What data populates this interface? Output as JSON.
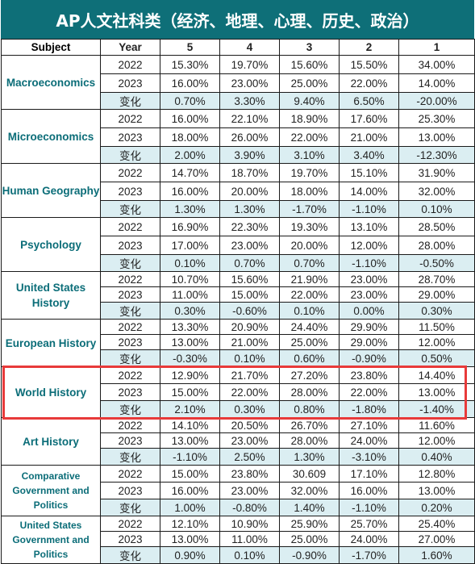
{
  "title": "AP人文社科类（经济、地理、心理、历史、政治）",
  "headers": [
    "Subject",
    "Year",
    "5",
    "4",
    "3",
    "2",
    "1"
  ],
  "subjects": [
    {
      "name": "Macroeconomics",
      "rows": [
        {
          "year": "2022",
          "values": [
            "15.30%",
            "19.70%",
            "15.60%",
            "15.50%",
            "34.00%"
          ]
        },
        {
          "year": "2023",
          "values": [
            "16.00%",
            "23.00%",
            "25.00%",
            "22.00%",
            "14.00%"
          ]
        },
        {
          "year": "变化",
          "values": [
            "0.70%",
            "3.30%",
            "9.40%",
            "6.50%",
            "-20.00%"
          ]
        }
      ]
    },
    {
      "name": "Microeconomics",
      "rows": [
        {
          "year": "2022",
          "values": [
            "16.00%",
            "22.10%",
            "18.90%",
            "17.60%",
            "25.30%"
          ]
        },
        {
          "year": "2023",
          "values": [
            "18.00%",
            "26.00%",
            "22.00%",
            "21.00%",
            "13.00%"
          ]
        },
        {
          "year": "变化",
          "values": [
            "2.00%",
            "3.90%",
            "3.10%",
            "3.40%",
            "-12.30%"
          ]
        }
      ]
    },
    {
      "name": "Human Geography",
      "rows": [
        {
          "year": "2022",
          "values": [
            "14.70%",
            "18.70%",
            "19.70%",
            "15.10%",
            "31.90%"
          ]
        },
        {
          "year": "2023",
          "values": [
            "16.00%",
            "20.00%",
            "18.00%",
            "14.00%",
            "32.00%"
          ]
        },
        {
          "year": "变化",
          "values": [
            "1.30%",
            "1.30%",
            "-1.70%",
            "-1.10%",
            "0.10%"
          ]
        }
      ]
    },
    {
      "name": "Psychology",
      "rows": [
        {
          "year": "2022",
          "values": [
            "16.90%",
            "22.30%",
            "19.30%",
            "13.10%",
            "28.50%"
          ]
        },
        {
          "year": "2023",
          "values": [
            "17.00%",
            "23.00%",
            "20.00%",
            "12.00%",
            "28.00%"
          ]
        },
        {
          "year": "变化",
          "values": [
            "0.10%",
            "0.70%",
            "0.70%",
            "-1.10%",
            "-0.50%"
          ]
        }
      ]
    },
    {
      "name": "United States History",
      "rows": [
        {
          "year": "2022",
          "values": [
            "10.70%",
            "15.60%",
            "21.90%",
            "23.00%",
            "28.70%"
          ]
        },
        {
          "year": "2023",
          "values": [
            "11.00%",
            "15.00%",
            "22.00%",
            "23.00%",
            "29.00%"
          ]
        },
        {
          "year": "变化",
          "values": [
            "0.30%",
            "-0.60%",
            "0.10%",
            "0.00%",
            "0.30%"
          ]
        }
      ]
    },
    {
      "name": "European History",
      "rows": [
        {
          "year": "2022",
          "values": [
            "13.30%",
            "20.90%",
            "24.40%",
            "29.90%",
            "11.50%"
          ]
        },
        {
          "year": "2023",
          "values": [
            "13.00%",
            "21.00%",
            "25.00%",
            "29.00%",
            "12.00%"
          ]
        },
        {
          "year": "变化",
          "values": [
            "-0.30%",
            "0.10%",
            "0.60%",
            "-0.90%",
            "0.50%"
          ]
        }
      ]
    },
    {
      "name": "World History",
      "rows": [
        {
          "year": "2022",
          "values": [
            "12.90%",
            "21.70%",
            "27.20%",
            "23.80%",
            "14.40%"
          ]
        },
        {
          "year": "2023",
          "values": [
            "15.00%",
            "22.00%",
            "28.00%",
            "22.00%",
            "13.00%"
          ]
        },
        {
          "year": "变化",
          "values": [
            "2.10%",
            "0.30%",
            "0.80%",
            "-1.80%",
            "-1.40%"
          ]
        }
      ]
    },
    {
      "name": "Art History",
      "rows": [
        {
          "year": "2022",
          "values": [
            "14.10%",
            "20.50%",
            "26.70%",
            "27.10%",
            "11.60%"
          ]
        },
        {
          "year": "2023",
          "values": [
            "13.00%",
            "23.00%",
            "28.00%",
            "24.00%",
            "12.00%"
          ]
        },
        {
          "year": "变化",
          "values": [
            "-1.10%",
            "2.50%",
            "1.30%",
            "-3.10%",
            "0.40%"
          ]
        }
      ]
    },
    {
      "name": "Comparative Government and Politics",
      "rows": [
        {
          "year": "2022",
          "values": [
            "15.00%",
            "23.80%",
            "30.609",
            "17.10%",
            "12.80%"
          ]
        },
        {
          "year": "2023",
          "values": [
            "16.00%",
            "23.00%",
            "32.00%",
            "16.00%",
            "13.00%"
          ]
        },
        {
          "year": "变化",
          "values": [
            "1.00%",
            "-0.80%",
            "1.40%",
            "-1.10%",
            "0.20%"
          ]
        }
      ]
    },
    {
      "name": "United States Government and Politics",
      "rows": [
        {
          "year": "2022",
          "values": [
            "12.10%",
            "10.90%",
            "25.90%",
            "25.70%",
            "25.40%"
          ]
        },
        {
          "year": "2023",
          "values": [
            "13.00%",
            "11.00%",
            "25.00%",
            "24.00%",
            "27.00%"
          ]
        },
        {
          "year": "变化",
          "values": [
            "0.90%",
            "0.10%",
            "-0.90%",
            "-1.70%",
            "1.60%"
          ]
        }
      ]
    }
  ],
  "highlight_subject": "World History",
  "colors": {
    "title_bg": "#0e6f78",
    "subject_text": "#0b6d78",
    "change_row_bg": "#dbeef2",
    "highlight_border": "#e83a3a"
  }
}
